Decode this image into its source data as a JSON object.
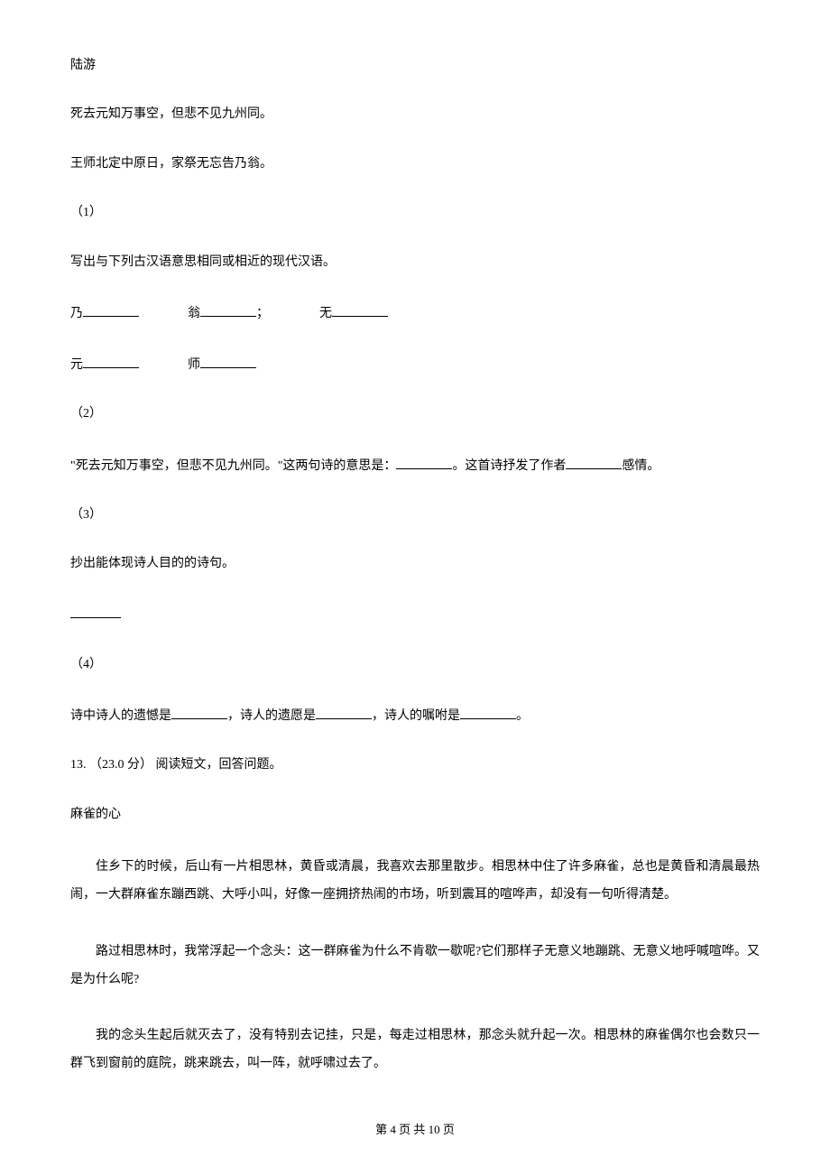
{
  "author": "陆游",
  "poem": {
    "line1": "死去元知万事空，但悲不见九州同。",
    "line2": "王师北定中原日，家祭无忘告乃翁。"
  },
  "q1": {
    "label": "（1）",
    "prompt": "写出与下列古汉语意思相同或相近的现代汉语。",
    "items": {
      "nai": "乃",
      "weng": "翁",
      "sep": "；",
      "wu": "无",
      "yuan": "元",
      "shi": "师"
    }
  },
  "q2": {
    "label": "（2）",
    "text_a": "\"死去元知万事空，但悲不见九州同。\"这两句诗的意思是：",
    "text_b": "。这首诗抒发了作者",
    "text_c": "感情。"
  },
  "q3": {
    "label": "（3）",
    "prompt": "抄出能体现诗人目的的诗句。"
  },
  "q4": {
    "label": "（4）",
    "text_a": "诗中诗人的遗憾是",
    "text_b": "，诗人的遗愿是",
    "text_c": "，诗人的嘱咐是",
    "text_d": "。"
  },
  "q13": {
    "header": "13. （23.0 分） 阅读短文，回答问题。",
    "title": "麻雀的心",
    "p1": "住乡下的时候，后山有一片相思林，黄昏或清晨，我喜欢去那里散步。相思林中住了许多麻雀，总也是黄昏和清晨最热闹，一大群麻雀东蹦西跳、大呼小叫，好像一座拥挤热闹的市场，听到震耳的喧哗声，却没有一句听得清楚。",
    "p2": "路过相思林时，我常浮起一个念头：这一群麻雀为什么不肯歇一歇呢?它们那样子无意义地蹦跳、无意义地呼喊喧哗。又是为什么呢?",
    "p3": "我的念头生起后就灭去了，没有特别去记挂，只是，每走过相思林，那念头就升起一次。相思林的麻雀偶尔也会数只一群飞到窗前的庭院，跳来跳去，叫一阵，就呼啸过去了。"
  },
  "footer": {
    "prefix": "第 ",
    "page": "4",
    "mid": " 页 共 ",
    "total": "10",
    "suffix": " 页"
  },
  "colors": {
    "text": "#000000",
    "background": "#ffffff"
  },
  "fontsize": 14
}
